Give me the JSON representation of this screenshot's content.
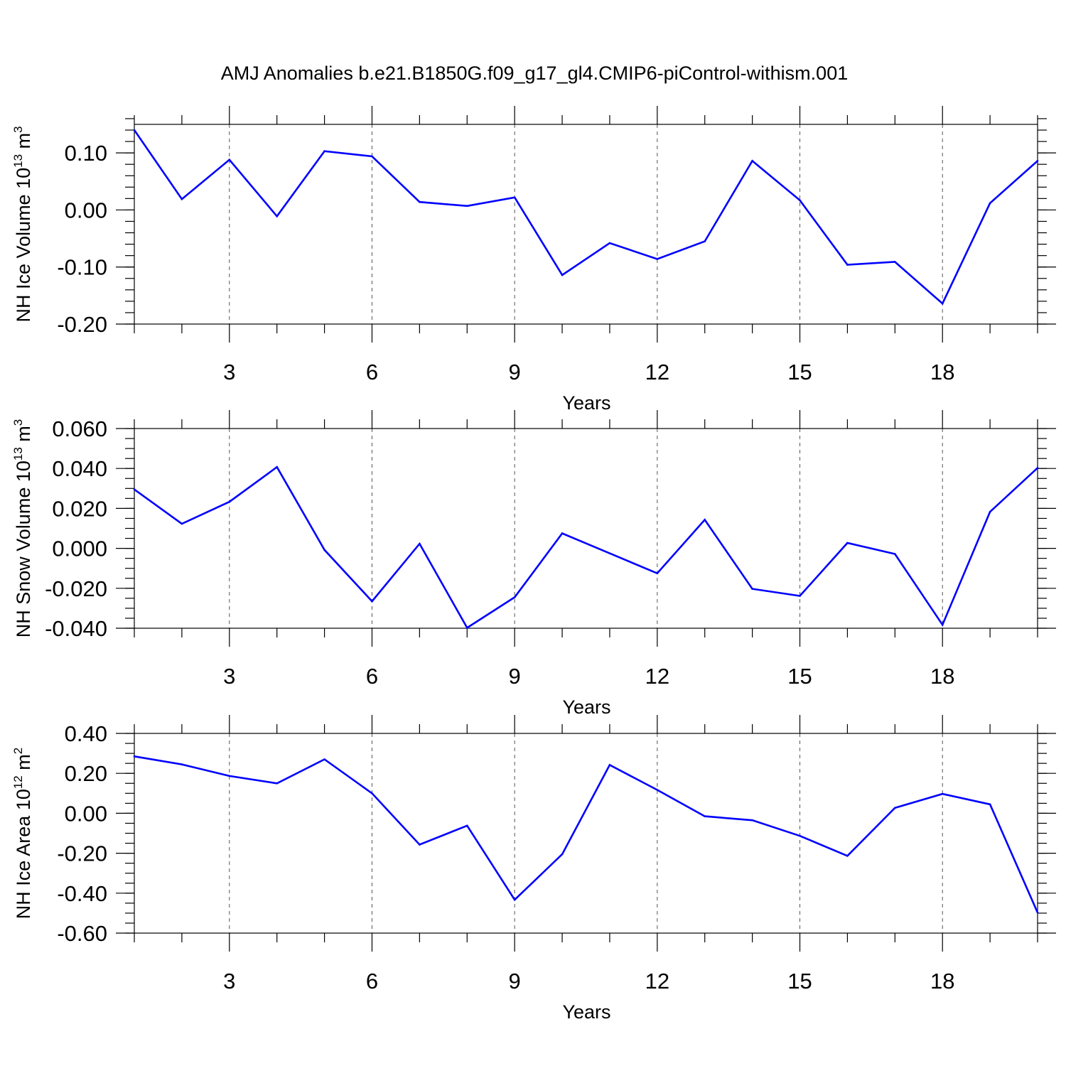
{
  "figure_title": "AMJ Anomalies b.e21.B1850G.f09_g17_gl4.CMIP6-piControl-withism.001",
  "colors": {
    "series": "#0000ff",
    "axes": "#000000",
    "grid": "#555555"
  },
  "chart_data": [
    {
      "type": "line",
      "ylabel_main": "NH Ice Volume 10",
      "ylabel_sup": "13",
      "ylabel_unit": " m",
      "ylabel_unit_sup": "3",
      "xlabel": "Years",
      "xlim": [
        1,
        20
      ],
      "ylim": [
        -0.2,
        0.15
      ],
      "xticks": [
        3,
        6,
        9,
        12,
        15,
        18
      ],
      "xtick_labels": [
        "3",
        "6",
        "9",
        "12",
        "15",
        "18"
      ],
      "yticks": [
        -0.2,
        -0.1,
        0.0,
        0.1
      ],
      "ytick_labels": [
        "-0.20",
        "-0.10",
        "0.00",
        "0.10"
      ],
      "y_minor_step": 0.02,
      "grid": "vertical dashed at major x ticks",
      "x": [
        1,
        2,
        3,
        4,
        5,
        6,
        7,
        8,
        9,
        10,
        11,
        12,
        13,
        14,
        15,
        16,
        17,
        18,
        19,
        20
      ],
      "values": [
        0.14,
        0.019,
        0.088,
        -0.011,
        0.103,
        0.094,
        0.014,
        0.007,
        0.022,
        -0.114,
        -0.058,
        -0.086,
        -0.055,
        0.086,
        0.017,
        -0.096,
        -0.091,
        -0.164,
        0.012,
        0.086
      ]
    },
    {
      "type": "line",
      "ylabel_main": "NH Snow Volume 10",
      "ylabel_sup": "13",
      "ylabel_unit": " m",
      "ylabel_unit_sup": "3",
      "xlabel": "Years",
      "xlim": [
        1,
        20
      ],
      "ylim": [
        -0.04,
        0.06
      ],
      "xticks": [
        3,
        6,
        9,
        12,
        15,
        18
      ],
      "xtick_labels": [
        "3",
        "6",
        "9",
        "12",
        "15",
        "18"
      ],
      "yticks": [
        -0.04,
        -0.02,
        0.0,
        0.02,
        0.04,
        0.06
      ],
      "ytick_labels": [
        "-0.040",
        "-0.020",
        "0.000",
        "0.020",
        "0.040",
        "0.060"
      ],
      "y_minor_step": 0.005,
      "grid": "vertical dashed at major x ticks",
      "x": [
        1,
        2,
        3,
        4,
        5,
        6,
        7,
        8,
        9,
        10,
        11,
        12,
        13,
        14,
        15,
        16,
        17,
        18,
        19,
        20
      ],
      "values": [
        0.0295,
        0.0123,
        0.0233,
        0.0407,
        -0.0008,
        -0.0265,
        0.0023,
        -0.0398,
        -0.0245,
        0.0075,
        -0.0025,
        -0.0125,
        0.0143,
        -0.0203,
        -0.0238,
        0.0027,
        -0.0028,
        -0.0383,
        0.0183,
        0.0403
      ]
    },
    {
      "type": "line",
      "ylabel_main": "NH Ice Area 10",
      "ylabel_sup": "12",
      "ylabel_unit": " m",
      "ylabel_unit_sup": "2",
      "xlabel": "Years",
      "xlim": [
        1,
        20
      ],
      "ylim": [
        -0.6,
        0.4
      ],
      "xticks": [
        3,
        6,
        9,
        12,
        15,
        18
      ],
      "xtick_labels": [
        "3",
        "6",
        "9",
        "12",
        "15",
        "18"
      ],
      "yticks": [
        -0.6,
        -0.4,
        -0.2,
        0.0,
        0.2,
        0.4
      ],
      "ytick_labels": [
        "-0.60",
        "-0.40",
        "-0.20",
        "0.00",
        "0.20",
        "0.40"
      ],
      "y_minor_step": 0.05,
      "grid": "vertical dashed at major x ticks",
      "x": [
        1,
        2,
        3,
        4,
        5,
        6,
        7,
        8,
        9,
        10,
        11,
        12,
        13,
        14,
        15,
        16,
        17,
        18,
        19,
        20
      ],
      "values": [
        0.285,
        0.245,
        0.187,
        0.15,
        0.27,
        0.1,
        -0.157,
        -0.062,
        -0.433,
        -0.205,
        0.242,
        0.117,
        -0.015,
        -0.035,
        -0.113,
        -0.213,
        0.027,
        0.097,
        0.045,
        -0.497
      ]
    }
  ]
}
